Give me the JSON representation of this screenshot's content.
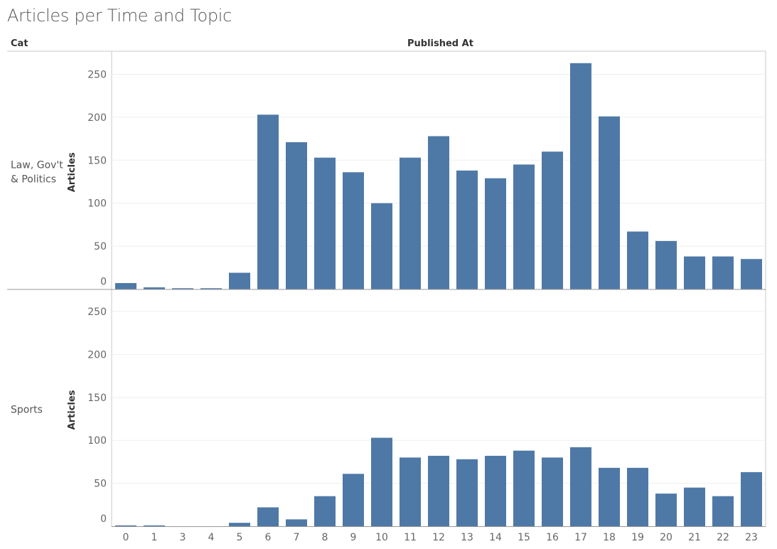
{
  "title": "Articles per Time and Topic",
  "row_header": "Cat",
  "column_header": "Published At",
  "chart_data": {
    "type": "bar",
    "title": "Articles per Time and Topic",
    "xlabel": "Published At",
    "ylabel": "Articles",
    "ylim": [
      0,
      260
    ],
    "yticks": [
      0,
      50,
      100,
      150,
      200,
      250
    ],
    "grid": true,
    "bar_color": "#4e79a7",
    "categories": [
      "0",
      "1",
      "3",
      "4",
      "5",
      "6",
      "7",
      "8",
      "9",
      "10",
      "11",
      "12",
      "13",
      "14",
      "15",
      "16",
      "17",
      "18",
      "19",
      "20",
      "21",
      "22",
      "23"
    ],
    "panels": [
      {
        "name": "Law, Gov't & Politics",
        "label_lines": [
          "Law, Gov't",
          "& Politics"
        ],
        "values": [
          7,
          2,
          1,
          1,
          19,
          203,
          171,
          153,
          136,
          100,
          153,
          178,
          138,
          129,
          145,
          160,
          263,
          201,
          67,
          56,
          38,
          38,
          35
        ]
      },
      {
        "name": "Sports",
        "label_lines": [
          "Sports"
        ],
        "values": [
          1,
          1,
          0,
          0,
          4,
          22,
          8,
          35,
          61,
          103,
          80,
          82,
          78,
          82,
          88,
          80,
          92,
          68,
          68,
          38,
          45,
          35,
          63
        ]
      }
    ]
  }
}
